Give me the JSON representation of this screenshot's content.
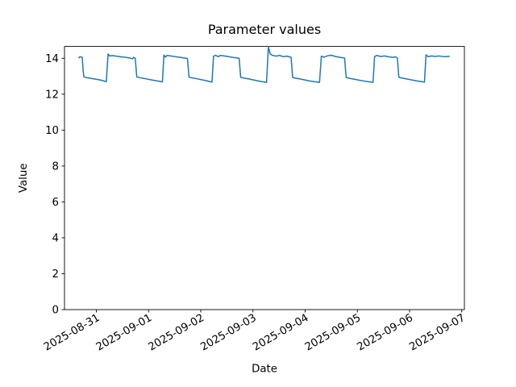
{
  "chart_data": {
    "type": "line",
    "title": "Parameter values",
    "xlabel": "Date",
    "ylabel": "Value",
    "background": "#ffffff",
    "text_color": "#000000",
    "grid": false,
    "legend": null,
    "x_axis": {
      "tick_labels": [
        "2025-08-31",
        "2025-09-01",
        "2025-09-02",
        "2025-09-03",
        "2025-09-04",
        "2025-09-05",
        "2025-09-06",
        "2025-09-07"
      ],
      "tick_positions_days_from_2025_08_31": [
        0,
        1,
        2,
        3,
        4,
        5,
        6,
        7
      ],
      "tick_label_rotation_deg": 30,
      "xlim_days_from_2025_08_31": [
        -0.61,
        7.05
      ]
    },
    "y_axis": {
      "tick_labels": [
        "0",
        "2",
        "4",
        "6",
        "8",
        "10",
        "12",
        "14"
      ],
      "tick_values": [
        0,
        2,
        4,
        6,
        8,
        10,
        12,
        14
      ],
      "ylim": [
        0,
        14.66
      ]
    },
    "series": [
      {
        "name": "parameter-values-line",
        "color": "#1f77b4",
        "line_width": 1.5,
        "points_t_days_from_2025_08_31_vs_value": [
          [
            -0.335,
            14.02
          ],
          [
            -0.315,
            14.09
          ],
          [
            -0.29,
            14.07
          ],
          [
            -0.27,
            14.06
          ],
          [
            -0.255,
            13.4
          ],
          [
            -0.24,
            12.97
          ],
          [
            -0.18,
            12.92
          ],
          [
            -0.1,
            12.88
          ],
          [
            -0.02,
            12.84
          ],
          [
            0.06,
            12.8
          ],
          [
            0.13,
            12.75
          ],
          [
            0.19,
            12.69
          ],
          [
            0.225,
            14.24
          ],
          [
            0.255,
            14.13
          ],
          [
            0.32,
            14.15
          ],
          [
            0.4,
            14.11
          ],
          [
            0.48,
            14.08
          ],
          [
            0.56,
            14.05
          ],
          [
            0.64,
            14.02
          ],
          [
            0.69,
            13.97
          ],
          [
            0.715,
            14.05
          ],
          [
            0.745,
            14.0
          ],
          [
            0.775,
            12.96
          ],
          [
            0.85,
            12.91
          ],
          [
            0.93,
            12.87
          ],
          [
            1.01,
            12.82
          ],
          [
            1.09,
            12.78
          ],
          [
            1.17,
            12.74
          ],
          [
            1.24,
            12.7
          ],
          [
            1.265,
            12.68
          ],
          [
            1.295,
            14.18
          ],
          [
            1.325,
            14.07
          ],
          [
            1.355,
            14.16
          ],
          [
            1.42,
            14.13
          ],
          [
            1.49,
            14.1
          ],
          [
            1.56,
            14.07
          ],
          [
            1.63,
            14.04
          ],
          [
            1.71,
            14.01
          ],
          [
            1.745,
            13.99
          ],
          [
            1.775,
            12.95
          ],
          [
            1.85,
            12.9
          ],
          [
            1.93,
            12.86
          ],
          [
            2.01,
            12.81
          ],
          [
            2.09,
            12.76
          ],
          [
            2.16,
            12.71
          ],
          [
            2.215,
            12.67
          ],
          [
            2.245,
            14.11
          ],
          [
            2.285,
            14.17
          ],
          [
            2.33,
            14.09
          ],
          [
            2.38,
            14.16
          ],
          [
            2.45,
            14.13
          ],
          [
            2.53,
            14.09
          ],
          [
            2.61,
            14.05
          ],
          [
            2.69,
            14.02
          ],
          [
            2.735,
            14.0
          ],
          [
            2.765,
            12.94
          ],
          [
            2.84,
            12.89
          ],
          [
            2.92,
            12.85
          ],
          [
            3.0,
            12.8
          ],
          [
            3.08,
            12.75
          ],
          [
            3.17,
            12.7
          ],
          [
            3.26,
            12.66
          ],
          [
            3.295,
            14.64
          ],
          [
            3.33,
            14.24
          ],
          [
            3.37,
            14.17
          ],
          [
            3.44,
            14.12
          ],
          [
            3.51,
            14.16
          ],
          [
            3.58,
            14.09
          ],
          [
            3.65,
            14.12
          ],
          [
            3.7,
            14.08
          ],
          [
            3.73,
            14.06
          ],
          [
            3.76,
            12.93
          ],
          [
            3.84,
            12.88
          ],
          [
            3.92,
            12.84
          ],
          [
            4.0,
            12.79
          ],
          [
            4.08,
            12.74
          ],
          [
            4.17,
            12.7
          ],
          [
            4.275,
            12.66
          ],
          [
            4.31,
            14.12
          ],
          [
            4.36,
            14.06
          ],
          [
            4.43,
            14.14
          ],
          [
            4.5,
            14.17
          ],
          [
            4.57,
            14.11
          ],
          [
            4.65,
            14.06
          ],
          [
            4.72,
            14.03
          ],
          [
            4.755,
            14.01
          ],
          [
            4.785,
            12.93
          ],
          [
            4.86,
            12.88
          ],
          [
            4.95,
            12.83
          ],
          [
            5.04,
            12.78
          ],
          [
            5.13,
            12.73
          ],
          [
            5.23,
            12.69
          ],
          [
            5.3,
            12.66
          ],
          [
            5.33,
            14.1
          ],
          [
            5.375,
            14.16
          ],
          [
            5.44,
            14.1
          ],
          [
            5.52,
            14.13
          ],
          [
            5.6,
            14.08
          ],
          [
            5.68,
            14.05
          ],
          [
            5.73,
            14.08
          ],
          [
            5.765,
            14.02
          ],
          [
            5.795,
            12.94
          ],
          [
            5.87,
            12.89
          ],
          [
            5.96,
            12.84
          ],
          [
            6.05,
            12.79
          ],
          [
            6.14,
            12.74
          ],
          [
            6.23,
            12.7
          ],
          [
            6.285,
            12.67
          ],
          [
            6.315,
            14.19
          ],
          [
            6.355,
            14.09
          ],
          [
            6.42,
            14.13
          ],
          [
            6.49,
            14.1
          ],
          [
            6.56,
            14.13
          ],
          [
            6.63,
            14.1
          ],
          [
            6.7,
            14.09
          ],
          [
            6.76,
            14.11
          ]
        ]
      }
    ]
  }
}
